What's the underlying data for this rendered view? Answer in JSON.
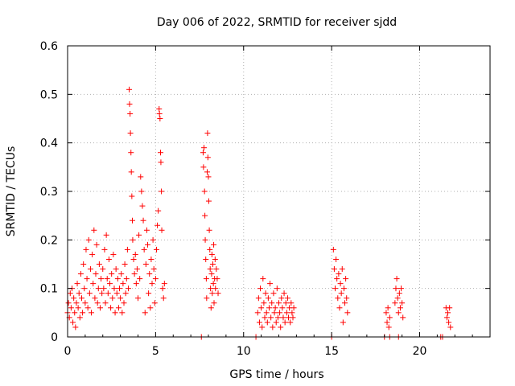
{
  "chart_data": {
    "type": "scatter",
    "title": "Day 006 of 2022, SRMTID for receiver sjdd",
    "xlabel": "GPS time / hours",
    "ylabel": "SRMTID / TECUs",
    "xlim": [
      0,
      24
    ],
    "ylim": [
      0,
      0.6
    ],
    "x_ticks": [
      0,
      5,
      10,
      15,
      20
    ],
    "x_tick_labels": [
      "0",
      "5",
      "10",
      "15",
      "20"
    ],
    "y_ticks": [
      0,
      0.1,
      0.2,
      0.3,
      0.4,
      0.5,
      0.6
    ],
    "y_tick_labels": [
      "0",
      "0.1",
      "0.2",
      "0.3",
      "0.4",
      "0.5",
      "0.6"
    ],
    "grid": true,
    "marker": "plus",
    "marker_color": "#ff0000",
    "series": [
      {
        "name": "SRMTID",
        "points": [
          [
            0.0,
            0.05
          ],
          [
            0.05,
            0.07
          ],
          [
            0.1,
            0.04
          ],
          [
            0.15,
            0.09
          ],
          [
            0.2,
            0.06
          ],
          [
            0.25,
            0.1
          ],
          [
            0.3,
            0.03
          ],
          [
            0.35,
            0.08
          ],
          [
            0.4,
            0.05
          ],
          [
            0.45,
            0.02
          ],
          [
            0.5,
            0.07
          ],
          [
            0.55,
            0.11
          ],
          [
            0.6,
            0.06
          ],
          [
            0.65,
            0.09
          ],
          [
            0.7,
            0.04
          ],
          [
            0.75,
            0.13
          ],
          [
            0.8,
            0.08
          ],
          [
            0.85,
            0.05
          ],
          [
            0.9,
            0.15
          ],
          [
            0.95,
            0.1
          ],
          [
            1.0,
            0.07
          ],
          [
            1.05,
            0.18
          ],
          [
            1.1,
            0.12
          ],
          [
            1.15,
            0.06
          ],
          [
            1.2,
            0.2
          ],
          [
            1.25,
            0.09
          ],
          [
            1.3,
            0.14
          ],
          [
            1.35,
            0.05
          ],
          [
            1.4,
            0.17
          ],
          [
            1.45,
            0.11
          ],
          [
            1.5,
            0.22
          ],
          [
            1.55,
            0.08
          ],
          [
            1.6,
            0.13
          ],
          [
            1.65,
            0.19
          ],
          [
            1.7,
            0.07
          ],
          [
            1.75,
            0.1
          ],
          [
            1.8,
            0.15
          ],
          [
            1.85,
            0.06
          ],
          [
            1.9,
            0.12
          ],
          [
            1.95,
            0.09
          ],
          [
            2.0,
            0.14
          ],
          [
            2.05,
            0.1
          ],
          [
            2.1,
            0.18
          ],
          [
            2.15,
            0.07
          ],
          [
            2.2,
            0.21
          ],
          [
            2.25,
            0.12
          ],
          [
            2.3,
            0.09
          ],
          [
            2.35,
            0.16
          ],
          [
            2.4,
            0.11
          ],
          [
            2.45,
            0.06
          ],
          [
            2.5,
            0.13
          ],
          [
            2.55,
            0.08
          ],
          [
            2.6,
            0.17
          ],
          [
            2.65,
            0.1
          ],
          [
            2.7,
            0.05
          ],
          [
            2.75,
            0.14
          ],
          [
            2.8,
            0.09
          ],
          [
            2.85,
            0.12
          ],
          [
            2.9,
            0.06
          ],
          [
            2.95,
            0.1
          ],
          [
            3.0,
            0.08
          ],
          [
            3.05,
            0.13
          ],
          [
            3.1,
            0.05
          ],
          [
            3.15,
            0.11
          ],
          [
            3.2,
            0.07
          ],
          [
            3.25,
            0.15
          ],
          [
            3.3,
            0.09
          ],
          [
            3.35,
            0.12
          ],
          [
            3.4,
            0.18
          ],
          [
            3.45,
            0.1
          ],
          [
            3.5,
            0.51
          ],
          [
            3.52,
            0.48
          ],
          [
            3.55,
            0.46
          ],
          [
            3.57,
            0.42
          ],
          [
            3.6,
            0.38
          ],
          [
            3.62,
            0.34
          ],
          [
            3.65,
            0.29
          ],
          [
            3.68,
            0.24
          ],
          [
            3.7,
            0.2
          ],
          [
            3.75,
            0.16
          ],
          [
            3.8,
            0.13
          ],
          [
            3.85,
            0.17
          ],
          [
            3.9,
            0.11
          ],
          [
            3.95,
            0.14
          ],
          [
            4.0,
            0.08
          ],
          [
            4.05,
            0.21
          ],
          [
            4.1,
            0.12
          ],
          [
            4.15,
            0.33
          ],
          [
            4.2,
            0.3
          ],
          [
            4.25,
            0.27
          ],
          [
            4.3,
            0.24
          ],
          [
            4.35,
            0.18
          ],
          [
            4.4,
            0.05
          ],
          [
            4.45,
            0.15
          ],
          [
            4.5,
            0.22
          ],
          [
            4.55,
            0.19
          ],
          [
            4.6,
            0.09
          ],
          [
            4.65,
            0.13
          ],
          [
            4.7,
            0.06
          ],
          [
            4.75,
            0.16
          ],
          [
            4.8,
            0.11
          ],
          [
            4.85,
            0.2
          ],
          [
            4.9,
            0.14
          ],
          [
            4.95,
            0.07
          ],
          [
            5.0,
            0.12
          ],
          [
            5.05,
            0.18
          ],
          [
            5.1,
            0.23
          ],
          [
            5.15,
            0.26
          ],
          [
            5.2,
            0.47
          ],
          [
            5.22,
            0.46
          ],
          [
            5.25,
            0.45
          ],
          [
            5.28,
            0.38
          ],
          [
            5.3,
            0.36
          ],
          [
            5.33,
            0.3
          ],
          [
            5.35,
            0.22
          ],
          [
            5.4,
            0.1
          ],
          [
            5.45,
            0.08
          ],
          [
            5.5,
            0.11
          ],
          [
            7.6,
            0.0
          ],
          [
            7.7,
            0.38
          ],
          [
            7.72,
            0.35
          ],
          [
            7.75,
            0.39
          ],
          [
            7.78,
            0.3
          ],
          [
            7.8,
            0.25
          ],
          [
            7.82,
            0.2
          ],
          [
            7.85,
            0.16
          ],
          [
            7.88,
            0.12
          ],
          [
            7.9,
            0.08
          ],
          [
            7.93,
            0.34
          ],
          [
            7.95,
            0.42
          ],
          [
            7.97,
            0.37
          ],
          [
            8.0,
            0.33
          ],
          [
            8.02,
            0.28
          ],
          [
            8.05,
            0.22
          ],
          [
            8.08,
            0.18
          ],
          [
            8.1,
            0.14
          ],
          [
            8.12,
            0.1
          ],
          [
            8.15,
            0.06
          ],
          [
            8.18,
            0.13
          ],
          [
            8.2,
            0.17
          ],
          [
            8.22,
            0.09
          ],
          [
            8.25,
            0.15
          ],
          [
            8.28,
            0.11
          ],
          [
            8.3,
            0.19
          ],
          [
            8.32,
            0.07
          ],
          [
            8.35,
            0.12
          ],
          [
            8.38,
            0.16
          ],
          [
            8.4,
            0.1
          ],
          [
            8.45,
            0.14
          ],
          [
            8.5,
            0.12
          ],
          [
            8.55,
            0.09
          ],
          [
            10.7,
            0.0
          ],
          [
            10.8,
            0.05
          ],
          [
            10.85,
            0.08
          ],
          [
            10.9,
            0.03
          ],
          [
            10.95,
            0.1
          ],
          [
            11.0,
            0.06
          ],
          [
            11.05,
            0.02
          ],
          [
            11.1,
            0.12
          ],
          [
            11.15,
            0.07
          ],
          [
            11.2,
            0.04
          ],
          [
            11.25,
            0.09
          ],
          [
            11.3,
            0.05
          ],
          [
            11.35,
            0.03
          ],
          [
            11.4,
            0.08
          ],
          [
            11.45,
            0.06
          ],
          [
            11.5,
            0.11
          ],
          [
            11.55,
            0.04
          ],
          [
            11.6,
            0.07
          ],
          [
            11.65,
            0.02
          ],
          [
            11.7,
            0.09
          ],
          [
            11.75,
            0.05
          ],
          [
            11.8,
            0.06
          ],
          [
            11.85,
            0.03
          ],
          [
            11.9,
            0.1
          ],
          [
            11.95,
            0.04
          ],
          [
            12.0,
            0.07
          ],
          [
            12.05,
            0.05
          ],
          [
            12.1,
            0.02
          ],
          [
            12.15,
            0.08
          ],
          [
            12.2,
            0.06
          ],
          [
            12.25,
            0.04
          ],
          [
            12.3,
            0.09
          ],
          [
            12.35,
            0.03
          ],
          [
            12.4,
            0.07
          ],
          [
            12.45,
            0.05
          ],
          [
            12.5,
            0.08
          ],
          [
            12.55,
            0.04
          ],
          [
            12.6,
            0.06
          ],
          [
            12.65,
            0.03
          ],
          [
            12.7,
            0.07
          ],
          [
            12.75,
            0.05
          ],
          [
            12.8,
            0.04
          ],
          [
            12.85,
            0.06
          ],
          [
            15.0,
            0.0
          ],
          [
            15.1,
            0.18
          ],
          [
            15.15,
            0.14
          ],
          [
            15.2,
            0.1
          ],
          [
            15.25,
            0.16
          ],
          [
            15.3,
            0.12
          ],
          [
            15.35,
            0.08
          ],
          [
            15.4,
            0.13
          ],
          [
            15.45,
            0.06
          ],
          [
            15.5,
            0.11
          ],
          [
            15.55,
            0.09
          ],
          [
            15.6,
            0.14
          ],
          [
            15.65,
            0.03
          ],
          [
            15.7,
            0.1
          ],
          [
            15.75,
            0.07
          ],
          [
            15.8,
            0.12
          ],
          [
            15.85,
            0.08
          ],
          [
            15.9,
            0.05
          ],
          [
            18.0,
            0.0
          ],
          [
            18.1,
            0.05
          ],
          [
            18.15,
            0.03
          ],
          [
            18.2,
            0.06
          ],
          [
            18.25,
            0.02
          ],
          [
            18.3,
            0.04
          ],
          [
            18.3,
            0.0
          ],
          [
            18.6,
            0.07
          ],
          [
            18.65,
            0.1
          ],
          [
            18.7,
            0.12
          ],
          [
            18.75,
            0.08
          ],
          [
            18.8,
            0.05
          ],
          [
            18.85,
            0.09
          ],
          [
            18.9,
            0.06
          ],
          [
            18.95,
            0.1
          ],
          [
            19.0,
            0.07
          ],
          [
            19.05,
            0.04
          ],
          [
            18.8,
            0.0
          ],
          [
            21.2,
            0.0
          ],
          [
            21.3,
            0.0
          ],
          [
            21.5,
            0.06
          ],
          [
            21.55,
            0.04
          ],
          [
            21.6,
            0.05
          ],
          [
            21.65,
            0.03
          ],
          [
            21.7,
            0.06
          ],
          [
            21.75,
            0.02
          ]
        ]
      }
    ]
  }
}
